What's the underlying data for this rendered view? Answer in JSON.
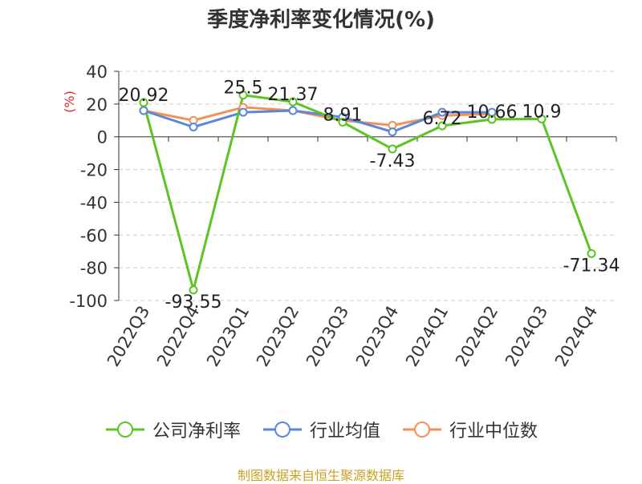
{
  "title": "季度净利率变化情况(%)",
  "source": "制图数据来自恒生聚源数据库",
  "chart_data": {
    "type": "line",
    "title": "季度净利率变化情况(%)",
    "ylabel": "(%)",
    "ylim": [
      -100,
      40
    ],
    "yticks": [
      40,
      20,
      0,
      -20,
      -40,
      -60,
      -80,
      -100
    ],
    "grid": true,
    "legend_position": "bottom",
    "categories": [
      "2022Q3",
      "2022Q4",
      "2023Q1",
      "2023Q2",
      "2023Q3",
      "2023Q4",
      "2024Q1",
      "2024Q2",
      "2024Q3",
      "2024Q4"
    ],
    "series": [
      {
        "name": "公司净利率",
        "color": "#5cc424",
        "values": [
          20.92,
          -93.55,
          25.5,
          21.37,
          8.91,
          -7.43,
          6.72,
          10.66,
          10.9,
          -71.34
        ],
        "labels": [
          "20.92",
          "-93.55",
          "25.5",
          "21.37",
          "8.91",
          "-7.43",
          "6.72",
          "10.66",
          "10.9",
          "-71.34"
        ]
      },
      {
        "name": "行业均值",
        "color": "#5b87d8",
        "values": [
          16,
          6,
          15,
          16,
          12,
          3,
          15,
          15,
          null,
          null
        ]
      },
      {
        "name": "行业中位数",
        "color": "#f0925a",
        "values": [
          16,
          10,
          18,
          16,
          10,
          7,
          13,
          14,
          null,
          null
        ]
      }
    ]
  }
}
